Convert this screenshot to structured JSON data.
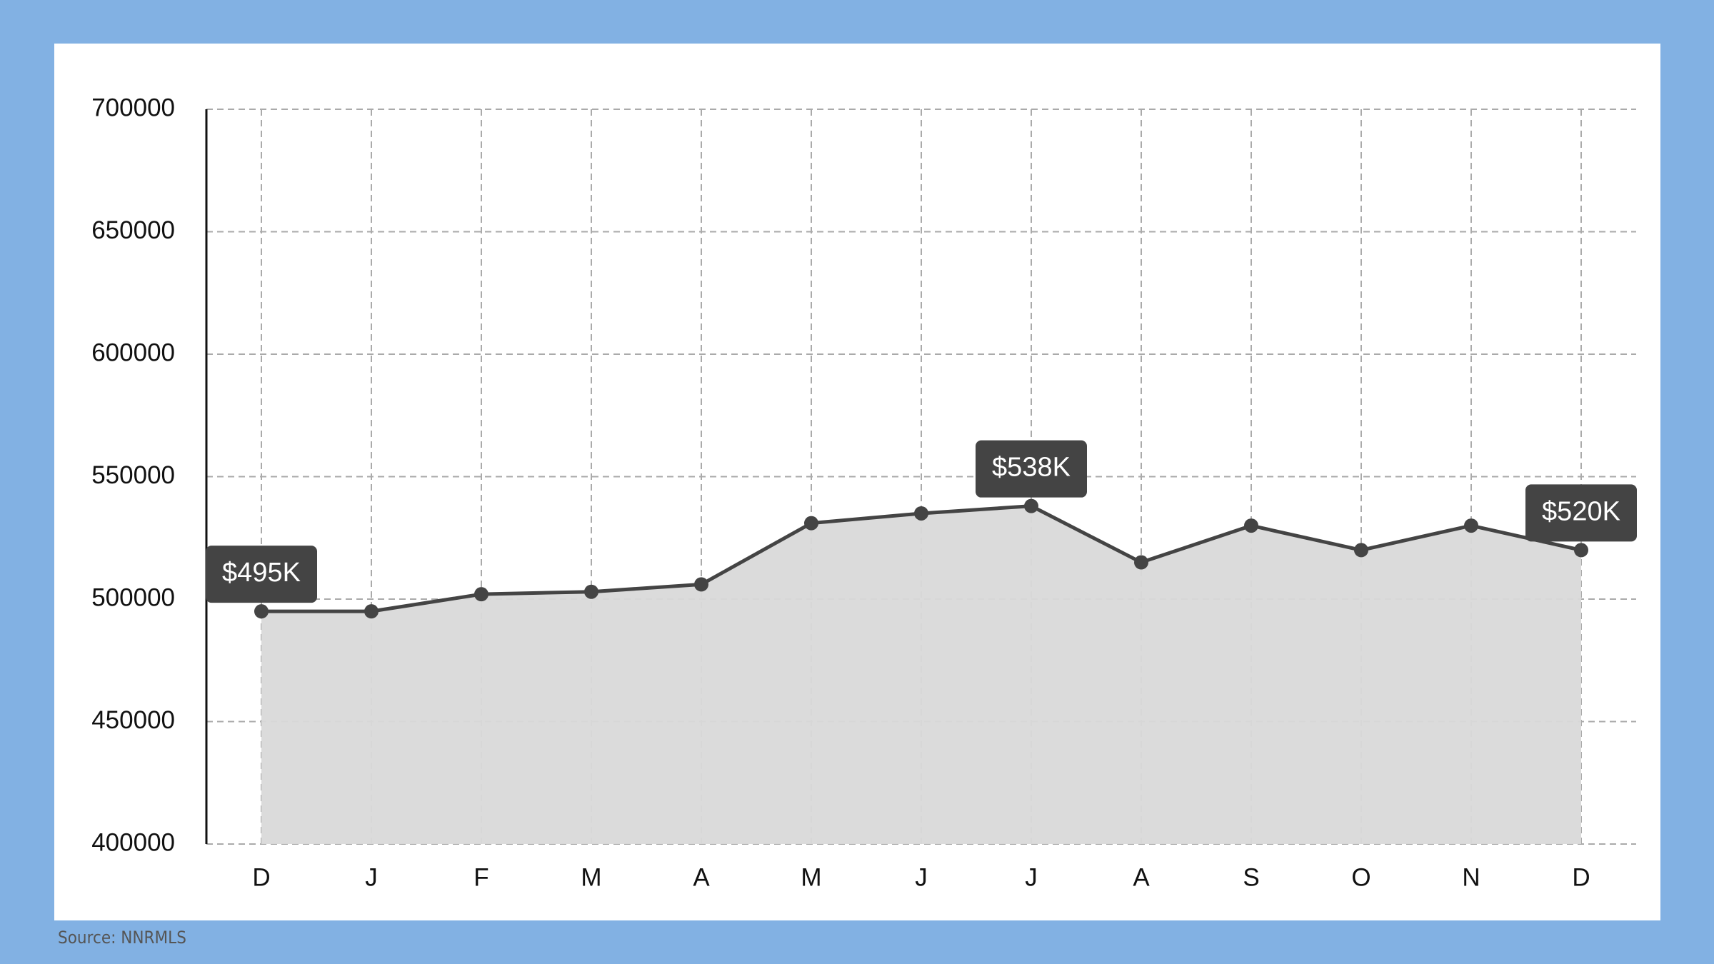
{
  "chart_data": {
    "type": "area",
    "source": "Source: NNRMLS",
    "categories": [
      "D",
      "J",
      "F",
      "M",
      "A",
      "M",
      "J",
      "J",
      "A",
      "S",
      "O",
      "N",
      "D"
    ],
    "values": [
      495000,
      495000,
      502000,
      503000,
      506000,
      531000,
      535000,
      538000,
      515000,
      530000,
      520000,
      530000,
      520000
    ],
    "value_labels": [
      "$495K",
      null,
      null,
      null,
      null,
      null,
      null,
      "$538K",
      null,
      null,
      null,
      null,
      "$520K"
    ],
    "color": "#444444",
    "fill": "#d9d9d9",
    "ylim": [
      400000,
      700000
    ],
    "yticks": [
      400000,
      450000,
      500000,
      550000,
      600000,
      650000,
      700000
    ],
    "grid": true
  }
}
